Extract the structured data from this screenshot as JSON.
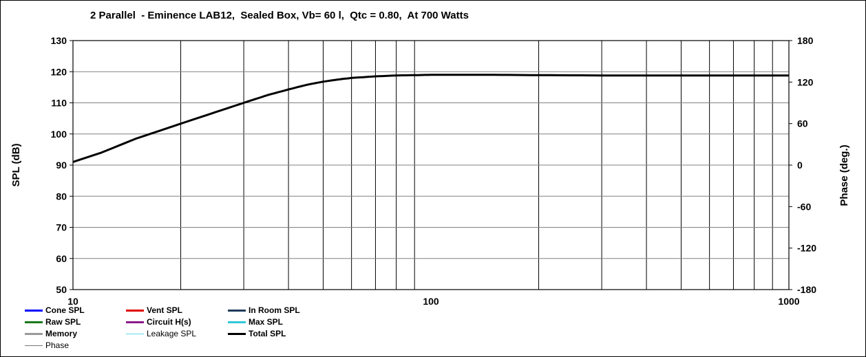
{
  "chart_data": {
    "type": "line",
    "title": "2 Parallel  - Eminence LAB12,  Sealed Box, Vb= 60 l,  Qtc = 0.80,  At 700 Watts",
    "ylabel": "SPL (dB)",
    "y2label": "Phase (deg.)",
    "xlabel": "",
    "xscale": "log",
    "xlim": [
      10,
      1000
    ],
    "ylim": [
      50,
      130
    ],
    "y2lim": [
      -180,
      180
    ],
    "x_tick_labels": [
      "10",
      "100",
      "1000"
    ],
    "x_tick_values": [
      10,
      100,
      1000
    ],
    "y_ticks": [
      130,
      120,
      110,
      100,
      90,
      80,
      70,
      60,
      50
    ],
    "y2_ticks": [
      180,
      120,
      60,
      0,
      -60,
      -120,
      -180
    ],
    "grid": true,
    "legend_position": "bottom-left",
    "series": [
      {
        "name": "Total SPL",
        "color": "#000000",
        "x": [
          10,
          12,
          15,
          20,
          25,
          30,
          35,
          40,
          45,
          50,
          55,
          60,
          70,
          80,
          90,
          100,
          120,
          150,
          200,
          300,
          500,
          700,
          1000
        ],
        "values": [
          91,
          94,
          98.5,
          103.3,
          107,
          110,
          112.5,
          114.3,
          115.8,
          116.8,
          117.5,
          118,
          118.5,
          118.8,
          118.9,
          119,
          119,
          119,
          118.9,
          118.8,
          118.8,
          118.8,
          118.8
        ]
      }
    ]
  },
  "legend": [
    {
      "label": "Cone SPL",
      "color": "#0000ff",
      "col": 0,
      "row": 0
    },
    {
      "label": "Vent SPL",
      "color": "#e00000",
      "col": 1,
      "row": 0
    },
    {
      "label": "In Room SPL",
      "color": "#1f3a5a",
      "col": 2,
      "row": 0
    },
    {
      "label": "Raw SPL",
      "color": "#1a7a1a",
      "col": 0,
      "row": 1
    },
    {
      "label": "Circuit H(s)",
      "color": "#8a1a8a",
      "col": 1,
      "row": 1
    },
    {
      "label": "Max SPL",
      "color": "#30c8d8",
      "col": 2,
      "row": 1
    },
    {
      "label": "Memory",
      "color": "#999999",
      "col": 0,
      "row": 2
    },
    {
      "label": "Leakage SPL",
      "color": "#60d8e8",
      "col": 1,
      "row": 2,
      "thin": true
    },
    {
      "label": "Total SPL",
      "color": "#000000",
      "col": 2,
      "row": 2
    },
    {
      "label": "Phase",
      "color": "#777777",
      "col": 0,
      "row": 3,
      "thin": true
    }
  ]
}
